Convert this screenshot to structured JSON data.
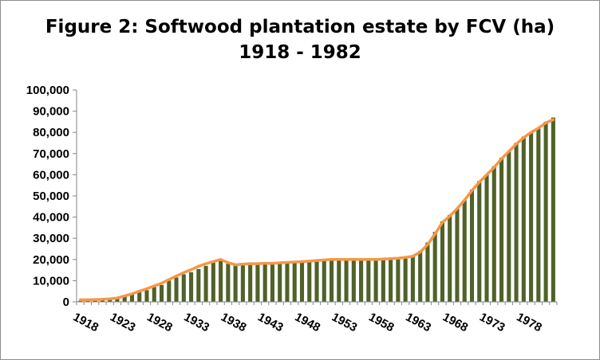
{
  "chart_data": {
    "type": "bar",
    "title_line1": "Figure 2: Softwood plantation estate by FCV (ha)",
    "title_line2": "1918 - 1982",
    "xlabel": "",
    "ylabel": "",
    "ylim": [
      0,
      100000
    ],
    "y_ticks": [
      "0",
      "10,000",
      "20,000",
      "30,000",
      "40,000",
      "50,000",
      "60,000",
      "70,000",
      "80,000",
      "90,000",
      "100,000"
    ],
    "x_tick_labels": [
      "1918",
      "1923",
      "1928",
      "1933",
      "1938",
      "1943",
      "1948",
      "1953",
      "1958",
      "1963",
      "1968",
      "1973",
      "1978"
    ],
    "grid": false,
    "legend": "none",
    "categories": [
      1918,
      1919,
      1920,
      1921,
      1922,
      1923,
      1924,
      1925,
      1926,
      1927,
      1928,
      1929,
      1930,
      1931,
      1932,
      1933,
      1934,
      1935,
      1936,
      1937,
      1938,
      1939,
      1940,
      1941,
      1942,
      1943,
      1944,
      1945,
      1946,
      1947,
      1948,
      1949,
      1950,
      1951,
      1952,
      1953,
      1954,
      1955,
      1956,
      1957,
      1958,
      1959,
      1960,
      1961,
      1962,
      1963,
      1964,
      1965,
      1966,
      1967,
      1968,
      1969,
      1970,
      1971,
      1972,
      1973,
      1974,
      1975,
      1976,
      1977,
      1978,
      1979,
      1980,
      1981,
      1982
    ],
    "series": [
      {
        "kind": "bar",
        "color": "#4f6228",
        "values": [
          500,
          1000,
          1200,
          1300,
          1500,
          1800,
          2500,
          3500,
          4500,
          5500,
          7000,
          8000,
          10000,
          11500,
          13000,
          14000,
          15500,
          17000,
          18500,
          19500,
          18000,
          17500,
          17500,
          17800,
          18000,
          18000,
          18000,
          18200,
          18500,
          18800,
          19000,
          19200,
          19500,
          19800,
          20000,
          20000,
          20000,
          20000,
          20000,
          20000,
          20000,
          20000,
          20500,
          20500,
          21000,
          22000,
          24000,
          28000,
          33000,
          38000,
          41000,
          44000,
          48000,
          53000,
          57000,
          60000,
          64000,
          68000,
          71000,
          75000,
          78000,
          80000,
          82000,
          85000,
          87000
        ]
      },
      {
        "kind": "line",
        "color": "#f79646",
        "values": [
          1000,
          1000,
          1100,
          1200,
          1400,
          1800,
          2800,
          3800,
          5000,
          6200,
          7500,
          8800,
          10500,
          12200,
          13800,
          15200,
          16800,
          18000,
          19000,
          20000,
          18500,
          17500,
          17800,
          18000,
          18000,
          18200,
          18200,
          18400,
          18600,
          18800,
          19000,
          19200,
          19500,
          19800,
          20000,
          20000,
          20000,
          20000,
          20000,
          20000,
          20000,
          20200,
          20400,
          20600,
          21000,
          21500,
          23500,
          27000,
          32000,
          37500,
          40500,
          44000,
          48000,
          52500,
          56500,
          60000,
          63500,
          67500,
          71000,
          74500,
          77500,
          80000,
          82000,
          84500,
          86000
        ]
      }
    ]
  }
}
